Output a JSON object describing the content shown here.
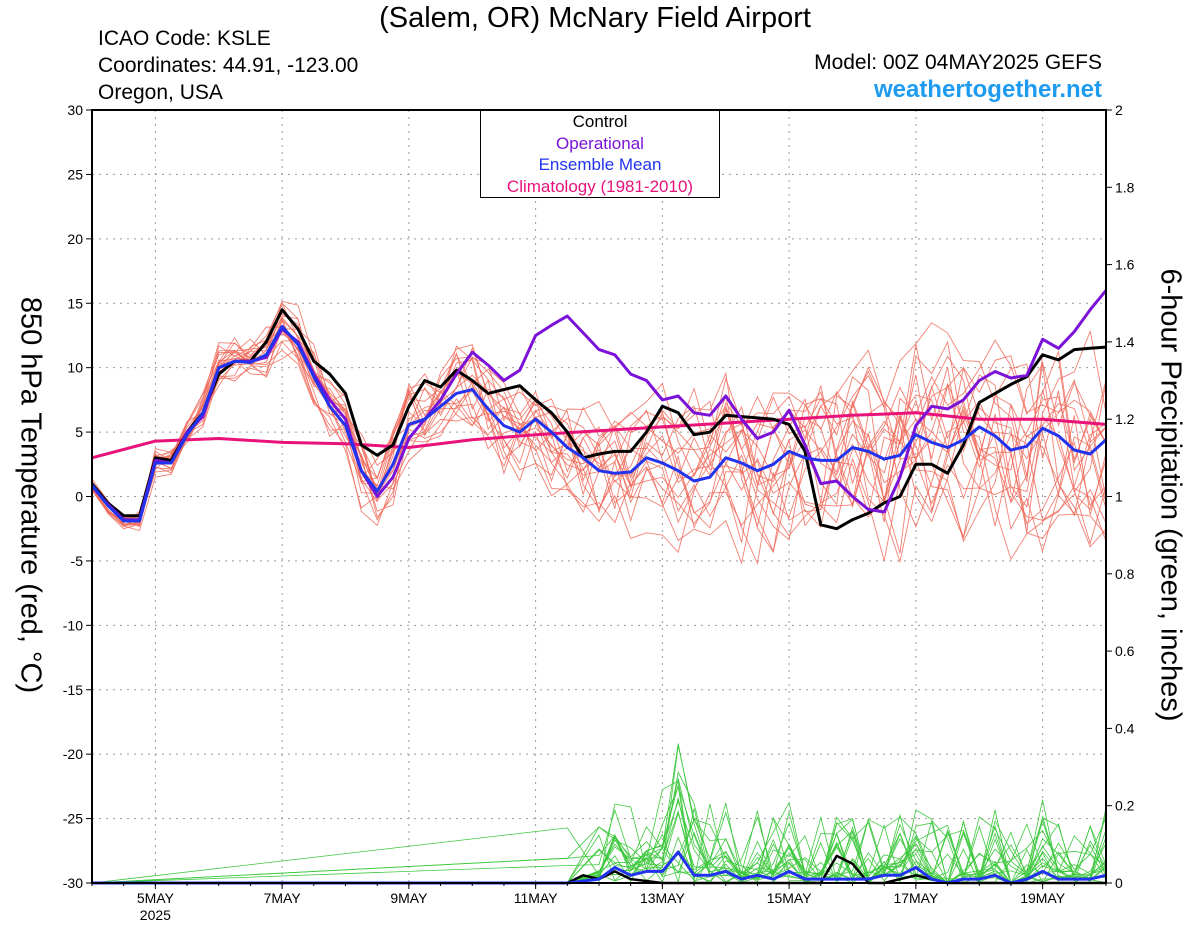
{
  "header": {
    "title": "(Salem, OR) McNary Field Airport",
    "icao": "ICAO Code: KSLE",
    "coords": "Coordinates: 44.91, -123.00",
    "region": "Oregon, USA",
    "model": "Model: 00Z 04MAY2025 GEFS",
    "site": "weathertogether.net"
  },
  "legend": {
    "control": "Control",
    "operational": "Operational",
    "mean": "Ensemble Mean",
    "climo": "Climatology (1981-2010)"
  },
  "colors": {
    "control": "#000000",
    "operational": "#7b12d8",
    "mean": "#2233ee",
    "climo": "#e8127a",
    "members": "#f06a5a",
    "precip": "#3ec83e",
    "site": "#1e9bf0"
  },
  "chart_data": {
    "type": "line",
    "ylabel_left": "850 hPa Temperature (red, °C)",
    "ylabel_right": "6-hour Precipitation (green, inches)",
    "ylim_left": [
      -30,
      30
    ],
    "ylim_right": [
      0,
      2
    ],
    "yticks_left": [
      "30",
      "25",
      "20",
      "15",
      "10",
      "5",
      "0",
      "-5",
      "-10",
      "-15",
      "-20",
      "-25",
      "-30"
    ],
    "yticks_right": [
      "2",
      "1.8",
      "1.6",
      "1.4",
      "1.2",
      "1",
      "0.8",
      "0.6",
      "0.4",
      "0.2",
      "0"
    ],
    "x_unit": "days since 04MAY2025 00Z",
    "xlim": [
      0,
      16
    ],
    "xticks": [
      {
        "x": 1,
        "label": "5MAY",
        "sub": "2025"
      },
      {
        "x": 3,
        "label": "7MAY"
      },
      {
        "x": 5,
        "label": "9MAY"
      },
      {
        "x": 7,
        "label": "11MAY"
      },
      {
        "x": 9,
        "label": "13MAY"
      },
      {
        "x": 11,
        "label": "15MAY"
      },
      {
        "x": 13,
        "label": "17MAY"
      },
      {
        "x": 15,
        "label": "19MAY"
      }
    ],
    "grid": true,
    "series": [
      {
        "name": "Control",
        "values": [
          [
            0,
            1
          ],
          [
            0.25,
            -0.5
          ],
          [
            0.5,
            -1.5
          ],
          [
            0.75,
            -1.5
          ],
          [
            1,
            3
          ],
          [
            1.25,
            2.8
          ],
          [
            1.5,
            5
          ],
          [
            1.75,
            6.5
          ],
          [
            2,
            9.5
          ],
          [
            2.25,
            10.5
          ],
          [
            2.5,
            10.5
          ],
          [
            2.75,
            12
          ],
          [
            3,
            14.5
          ],
          [
            3.25,
            13
          ],
          [
            3.5,
            10.5
          ],
          [
            3.75,
            9.5
          ],
          [
            4,
            8
          ],
          [
            4.25,
            4
          ],
          [
            4.5,
            3.2
          ],
          [
            4.75,
            4
          ],
          [
            5,
            7
          ],
          [
            5.25,
            9
          ],
          [
            5.5,
            8.5
          ],
          [
            5.75,
            9.8
          ],
          [
            6,
            9
          ],
          [
            6.25,
            8
          ],
          [
            6.5,
            8.3
          ],
          [
            6.75,
            8.6
          ],
          [
            7,
            7.5
          ],
          [
            7.25,
            6.5
          ],
          [
            7.5,
            5
          ],
          [
            7.75,
            3
          ],
          [
            8,
            3.3
          ],
          [
            8.25,
            3.5
          ],
          [
            8.5,
            3.5
          ],
          [
            8.75,
            5
          ],
          [
            9,
            7
          ],
          [
            9.25,
            6.5
          ],
          [
            9.5,
            4.8
          ],
          [
            9.75,
            5
          ],
          [
            10,
            6.3
          ],
          [
            10.25,
            6.2
          ],
          [
            10.5,
            6.1
          ],
          [
            10.75,
            6
          ],
          [
            11,
            5.6
          ],
          [
            11.25,
            3.5
          ],
          [
            11.5,
            -2.2
          ],
          [
            11.75,
            -2.5
          ],
          [
            12,
            -1.8
          ],
          [
            12.25,
            -1.3
          ],
          [
            12.5,
            -0.5
          ],
          [
            12.75,
            0
          ],
          [
            13,
            2.5
          ],
          [
            13.25,
            2.5
          ],
          [
            13.5,
            1.8
          ],
          [
            13.75,
            4
          ],
          [
            14,
            7.3
          ],
          [
            14.25,
            8
          ],
          [
            14.5,
            8.7
          ],
          [
            14.75,
            9.3
          ],
          [
            15,
            11
          ],
          [
            15.25,
            10.6
          ],
          [
            15.5,
            11.4
          ],
          [
            15.75,
            11.5
          ],
          [
            16,
            11.6
          ]
        ]
      },
      {
        "name": "Operational",
        "values": [
          [
            0,
            0.8
          ],
          [
            0.25,
            -0.6
          ],
          [
            0.5,
            -1.8
          ],
          [
            0.75,
            -1.8
          ],
          [
            1,
            2.8
          ],
          [
            1.25,
            2.6
          ],
          [
            1.5,
            5
          ],
          [
            1.75,
            6.2
          ],
          [
            2,
            10
          ],
          [
            2.25,
            10.5
          ],
          [
            2.5,
            10.5
          ],
          [
            2.75,
            10.8
          ],
          [
            3,
            13
          ],
          [
            3.25,
            12
          ],
          [
            3.5,
            9.5
          ],
          [
            3.75,
            7.5
          ],
          [
            4,
            6
          ],
          [
            4.25,
            2
          ],
          [
            4.5,
            0
          ],
          [
            4.75,
            1.5
          ],
          [
            5,
            4.5
          ],
          [
            5.25,
            6
          ],
          [
            5.5,
            7.5
          ],
          [
            5.75,
            9.5
          ],
          [
            6,
            11.2
          ],
          [
            6.25,
            10.2
          ],
          [
            6.5,
            9
          ],
          [
            6.75,
            9.8
          ],
          [
            7,
            12.5
          ],
          [
            7.25,
            13.3
          ],
          [
            7.5,
            14
          ],
          [
            7.75,
            12.7
          ],
          [
            8,
            11.4
          ],
          [
            8.25,
            11
          ],
          [
            8.5,
            9.5
          ],
          [
            8.75,
            9
          ],
          [
            9,
            7.5
          ],
          [
            9.25,
            7.8
          ],
          [
            9.5,
            6.5
          ],
          [
            9.75,
            6.3
          ],
          [
            10,
            7.8
          ],
          [
            10.25,
            6
          ],
          [
            10.5,
            4.5
          ],
          [
            10.75,
            5
          ],
          [
            11,
            6.7
          ],
          [
            11.25,
            4
          ],
          [
            11.5,
            1
          ],
          [
            11.75,
            1.2
          ],
          [
            12,
            0
          ],
          [
            12.25,
            -1
          ],
          [
            12.5,
            -1.2
          ],
          [
            12.75,
            1.5
          ],
          [
            13,
            5.5
          ],
          [
            13.25,
            7
          ],
          [
            13.5,
            6.8
          ],
          [
            13.75,
            7.5
          ],
          [
            14,
            9
          ],
          [
            14.25,
            9.7
          ],
          [
            14.5,
            9.2
          ],
          [
            14.75,
            9.4
          ],
          [
            15,
            12.2
          ],
          [
            15.25,
            11.5
          ],
          [
            15.5,
            12.8
          ],
          [
            15.75,
            14.5
          ],
          [
            16,
            16
          ]
        ]
      },
      {
        "name": "Ensemble Mean",
        "values": [
          [
            0,
            0.9
          ],
          [
            0.25,
            -0.7
          ],
          [
            0.5,
            -1.9
          ],
          [
            0.75,
            -1.9
          ],
          [
            1,
            2.6
          ],
          [
            1.25,
            2.6
          ],
          [
            1.5,
            4.8
          ],
          [
            1.75,
            6.5
          ],
          [
            2,
            10
          ],
          [
            2.25,
            10.5
          ],
          [
            2.5,
            10.4
          ],
          [
            2.75,
            11
          ],
          [
            3,
            13.2
          ],
          [
            3.25,
            11.8
          ],
          [
            3.5,
            9.3
          ],
          [
            3.75,
            7
          ],
          [
            4,
            5.5
          ],
          [
            4.25,
            2
          ],
          [
            4.5,
            0.4
          ],
          [
            4.75,
            2.5
          ],
          [
            5,
            5.6
          ],
          [
            5.25,
            6
          ],
          [
            5.5,
            7
          ],
          [
            5.75,
            8
          ],
          [
            6,
            8.3
          ],
          [
            6.25,
            6.8
          ],
          [
            6.5,
            5.5
          ],
          [
            6.75,
            5
          ],
          [
            7,
            6
          ],
          [
            7.25,
            5
          ],
          [
            7.5,
            3.8
          ],
          [
            7.75,
            3
          ],
          [
            8,
            2
          ],
          [
            8.25,
            1.8
          ],
          [
            8.5,
            1.9
          ],
          [
            8.75,
            3
          ],
          [
            9,
            2.6
          ],
          [
            9.25,
            2
          ],
          [
            9.5,
            1.2
          ],
          [
            9.75,
            1.5
          ],
          [
            10,
            3
          ],
          [
            10.25,
            2.6
          ],
          [
            10.5,
            2
          ],
          [
            10.75,
            2.5
          ],
          [
            11,
            3.5
          ],
          [
            11.25,
            3
          ],
          [
            11.5,
            2.8
          ],
          [
            11.75,
            2.8
          ],
          [
            12,
            3.8
          ],
          [
            12.25,
            3.5
          ],
          [
            12.5,
            2.9
          ],
          [
            12.75,
            3.2
          ],
          [
            13,
            4.8
          ],
          [
            13.25,
            4.2
          ],
          [
            13.5,
            3.8
          ],
          [
            13.75,
            4.4
          ],
          [
            14,
            5.4
          ],
          [
            14.25,
            4.7
          ],
          [
            14.5,
            3.6
          ],
          [
            14.75,
            3.9
          ],
          [
            15,
            5.3
          ],
          [
            15.25,
            4.7
          ],
          [
            15.5,
            3.6
          ],
          [
            15.75,
            3.3
          ],
          [
            16,
            4.4
          ]
        ]
      },
      {
        "name": "Climatology (1981-2010)",
        "values": [
          [
            0,
            3
          ],
          [
            1,
            4.3
          ],
          [
            2,
            4.5
          ],
          [
            3,
            4.2
          ],
          [
            4,
            4.1
          ],
          [
            5,
            3.8
          ],
          [
            6,
            4.4
          ],
          [
            7,
            4.8
          ],
          [
            8,
            5.1
          ],
          [
            9,
            5.4
          ],
          [
            10,
            5.7
          ],
          [
            11,
            6
          ],
          [
            12,
            6.3
          ],
          [
            13,
            6.5
          ],
          [
            14,
            6
          ],
          [
            15,
            6
          ],
          [
            16,
            5.6
          ]
        ]
      },
      {
        "name": "Control 6-hour Precipitation",
        "values": [
          [
            0,
            0
          ],
          [
            7.5,
            0
          ],
          [
            7.75,
            0.02
          ],
          [
            8,
            0.01
          ],
          [
            8.25,
            0.03
          ],
          [
            8.5,
            0.01
          ],
          [
            9,
            0
          ],
          [
            11.5,
            0
          ],
          [
            11.75,
            0.07
          ],
          [
            12,
            0.05
          ],
          [
            12.25,
            0
          ],
          [
            12.5,
            0
          ],
          [
            13,
            0.02
          ],
          [
            13.5,
            0
          ],
          [
            16,
            0
          ]
        ]
      },
      {
        "name": "Ensemble Mean 6-hour Precipitation",
        "values": [
          [
            0,
            0
          ],
          [
            7.5,
            0
          ],
          [
            8,
            0.01
          ],
          [
            8.25,
            0.04
          ],
          [
            8.5,
            0.02
          ],
          [
            8.75,
            0.03
          ],
          [
            9,
            0.03
          ],
          [
            9.25,
            0.08
          ],
          [
            9.5,
            0.02
          ],
          [
            9.75,
            0.02
          ],
          [
            10,
            0.03
          ],
          [
            10.25,
            0.01
          ],
          [
            10.5,
            0.02
          ],
          [
            10.75,
            0.01
          ],
          [
            11,
            0.03
          ],
          [
            11.25,
            0.01
          ],
          [
            11.5,
            0.01
          ],
          [
            11.75,
            0.01
          ],
          [
            12,
            0.01
          ],
          [
            12.25,
            0.01
          ],
          [
            12.5,
            0.02
          ],
          [
            12.75,
            0.02
          ],
          [
            13,
            0.04
          ],
          [
            13.25,
            0.01
          ],
          [
            13.5,
            0
          ],
          [
            13.75,
            0.01
          ],
          [
            14,
            0.01
          ],
          [
            14.25,
            0.02
          ],
          [
            14.5,
            0
          ],
          [
            14.75,
            0.01
          ],
          [
            15,
            0.03
          ],
          [
            15.25,
            0.01
          ],
          [
            15.5,
            0.01
          ],
          [
            15.75,
            0.01
          ],
          [
            16,
            0.02
          ]
        ]
      }
    ]
  }
}
